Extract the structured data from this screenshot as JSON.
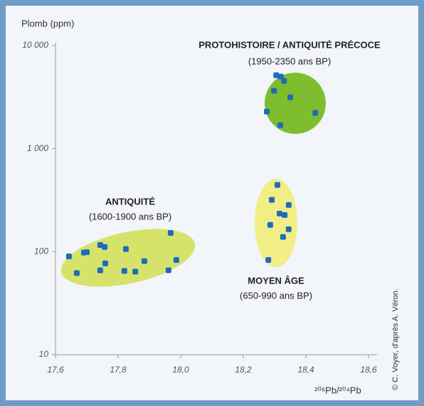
{
  "chart_data": {
    "type": "scatter",
    "y_label": "Plomb (ppm)",
    "x_label": "²⁰⁶Pb/²⁰⁴Pb",
    "credit": "© C. Voyer, d'après A. Véron.",
    "xlim": [
      17.6,
      18.6
    ],
    "xticks": [
      {
        "value": 17.6,
        "label": "17,6"
      },
      {
        "value": 17.8,
        "label": "17,8"
      },
      {
        "value": 18.0,
        "label": "18,0"
      },
      {
        "value": 18.2,
        "label": "18,2"
      },
      {
        "value": 18.4,
        "label": "18,4"
      },
      {
        "value": 18.6,
        "label": "18,6"
      }
    ],
    "ylim": [
      10,
      10000
    ],
    "yticks": [
      {
        "value": 10000,
        "label": "10 000"
      },
      {
        "value": 1000,
        "label": "1 000"
      },
      100,
      10
    ],
    "log_y": true,
    "series": [
      {
        "name": "ANTIQUITÉ",
        "period": "(1600-1900 ans BP)",
        "color": "#1e6bbd",
        "x": [
          17.643,
          17.668,
          17.691,
          17.7,
          17.743,
          17.757,
          17.759,
          17.743,
          17.825,
          17.82,
          17.855,
          17.884,
          17.968,
          17.986,
          17.961
        ],
        "values": [
          90,
          62,
          98,
          99,
          116,
          111,
          77,
          66,
          106,
          65,
          64,
          81,
          152,
          83,
          66
        ]
      },
      {
        "name": "PROTOHISTOIRE / ANTIQUITÉ PRÉCOCE",
        "period": "(1950-2350 ans BP)",
        "color": "#1e6bbd",
        "x": [
          18.305,
          18.32,
          18.33,
          18.298,
          18.275,
          18.35,
          18.318,
          18.43
        ],
        "values": [
          5160,
          5000,
          4540,
          3640,
          2290,
          3150,
          1690,
          2220
        ]
      },
      {
        "name": "MOYEN ÂGE",
        "period": "(650-990 ans BP)",
        "color": "#1e6bbd",
        "x": [
          18.309,
          18.291,
          18.345,
          18.316,
          18.332,
          18.286,
          18.345,
          18.327,
          18.28
        ],
        "values": [
          444,
          318,
          284,
          234,
          227,
          182,
          165,
          139,
          83
        ]
      }
    ]
  }
}
